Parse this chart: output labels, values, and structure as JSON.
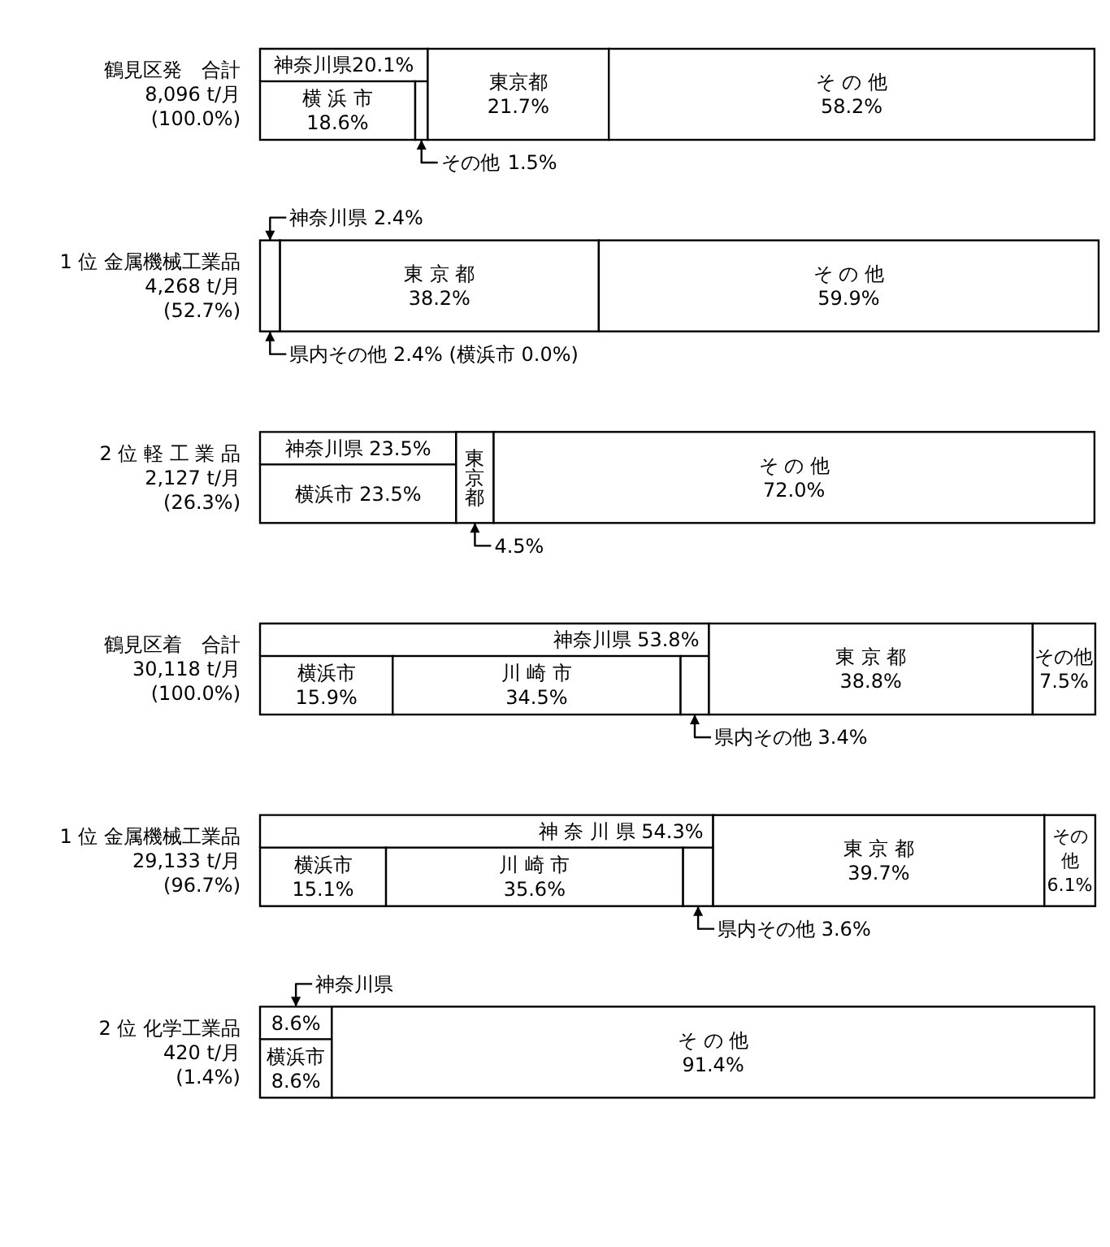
{
  "chart_data": {
    "type": "bar",
    "orientation": "horizontal",
    "stacked": true,
    "categories": [
      "鶴見区発　合計\n8,096 t/月\n(100.0%)",
      "1 位 金属機械工業品\n4,268 t/月\n(52.7%)",
      "2 位 軽 工 業 品\n2,127 t/月\n(26.3%)",
      "鶴見区着　合計\n30,118 t/月\n(100.0%)",
      "1 位 金属機械工業品\n29,133 t/月\n(96.7%)",
      "2 位 化学工業品\n420 t/月\n(1.4%)"
    ],
    "series": [
      {
        "color": "#ffffff",
        "values": [
          18.6,
          0.0,
          23.5,
          15.9,
          15.1,
          8.6
        ],
        "value_labels": [
          "横 浜 市\n18.6%",
          null,
          "横浜市 23.5%",
          "横浜市\n15.9%",
          "横浜市\n15.1%",
          "横浜市\n8.6%"
        ]
      },
      {
        "color": "#ffffff",
        "values": [
          null,
          null,
          null,
          34.5,
          35.6,
          null
        ],
        "value_labels": [
          null,
          null,
          null,
          "川 崎 市\n34.5%",
          "川 崎 市\n35.6%",
          null
        ]
      },
      {
        "color": "#ffffff",
        "values": [
          1.5,
          2.4,
          null,
          3.4,
          3.6,
          null
        ],
        "value_labels": [
          "その他\n1.5%",
          "県内その他 2.4% (横浜市 0.0%)",
          null,
          "県内その他 3.4%",
          "県内その他 3.6%",
          null
        ]
      },
      {
        "color": "#ffffff",
        "values": [
          21.7,
          38.2,
          4.5,
          38.8,
          39.7,
          null
        ],
        "value_labels": [
          "東京都\n21.7%",
          "東 京 都\n38.2%",
          "東京都\n4.5%",
          "東 京 都\n38.8%",
          "東 京 都\n39.7%",
          null
        ]
      },
      {
        "color": "#ffffff",
        "values": [
          58.2,
          59.9,
          72.0,
          7.5,
          6.1,
          91.4
        ],
        "value_labels": [
          "そ の 他\n58.2%",
          "そ の 他\n59.9%",
          "そ の 他\n72.0%",
          "その他\n7.5%",
          "その他\n6.1%",
          "そ の 他\n91.4%"
        ]
      }
    ],
    "annotations": [
      {
        "text": "神奈川県20.1%",
        "x": 20.1,
        "y": "鶴見区発　合計\n8,096 t/月\n(100.0%)"
      },
      {
        "text": "神奈川県 2.4%",
        "x": 2.4,
        "y": "1 位 金属機械工業品\n4,268 t/月\n(52.7%)"
      },
      {
        "text": "神奈川県 23.5%",
        "x": 23.5,
        "y": "2 位 軽 工 業 品\n2,127 t/月\n(26.3%)"
      },
      {
        "text": "神奈川県 53.8%",
        "x": 53.8,
        "y": "鶴見区着　合計\n30,118 t/月\n(100.0%)"
      },
      {
        "text": "神 奈 川 県 54.3%",
        "x": 54.3,
        "y": "1 位 金属機械工業品\n29,133 t/月\n(96.7%)"
      },
      {
        "text": "8.6%",
        "x": 8.6,
        "y": "2 位 化学工業品\n420 t/月\n(1.4%)"
      },
      {
        "text": "神奈川県",
        "x": 8.6,
        "y": "2 位 化学工業品\n420 t/月\n(1.4%)"
      }
    ]
  }
}
